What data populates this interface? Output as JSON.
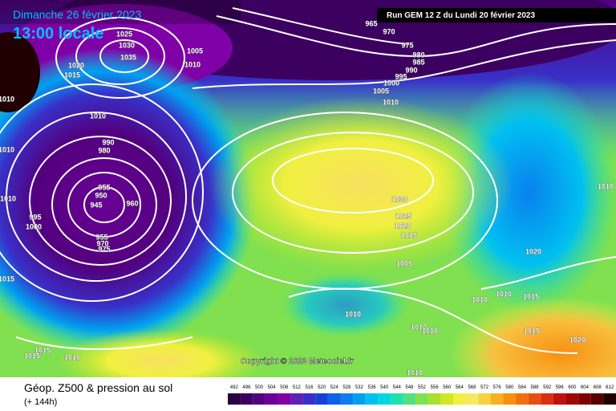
{
  "header": {
    "date": "Dimanche 26 février 2023",
    "time": "13:00 locale",
    "run": "Run GEM 12 Z du Lundi 20 février 2023"
  },
  "copyright": "Copyright © 2023 Meteociel.fr",
  "footer": {
    "title": "Géop. Z500 & pression au sol",
    "lead": "(+ 144h)"
  },
  "isobar_labels": [
    "965",
    "970",
    "975",
    "980",
    "985",
    "990",
    "995",
    "1000",
    "1005",
    "1010",
    "1025",
    "1030",
    "1035",
    "1020",
    "1015",
    "1010",
    "1005",
    "1010",
    "1010",
    "990",
    "980",
    "1010",
    "955",
    "950",
    "945",
    "960",
    "1010",
    "995",
    "1000",
    "955",
    "970",
    "975",
    "1015",
    "1010",
    "1015",
    "1015",
    "1030",
    "1025",
    "1020",
    "1015",
    "1005",
    "1010",
    "1010",
    "1010",
    "1015",
    "1020",
    "1010",
    "1015",
    "1020",
    "1010",
    "1010",
    "1010"
  ],
  "scale": {
    "ticks": [
      492,
      496,
      500,
      504,
      508,
      512,
      516,
      520,
      524,
      528,
      532,
      536,
      540,
      544,
      548,
      552,
      556,
      560,
      564,
      568,
      572,
      576,
      580,
      584,
      588,
      592,
      596,
      600,
      604,
      608,
      612
    ],
    "colors": [
      "#2a0040",
      "#3c0060",
      "#52007e",
      "#6a0096",
      "#8000a8",
      "#6020b8",
      "#3830c8",
      "#1840d8",
      "#1060e8",
      "#0a80f0",
      "#00a0f0",
      "#00c0f0",
      "#00d8e0",
      "#20e0b0",
      "#50e080",
      "#80e050",
      "#a8e030",
      "#d0e820",
      "#f0f040",
      "#f8e860",
      "#f8d040",
      "#f8b020",
      "#f89010",
      "#f07010",
      "#e85010",
      "#d83010",
      "#c01010",
      "#a00808",
      "#800000",
      "#580000",
      "#200000"
    ]
  }
}
